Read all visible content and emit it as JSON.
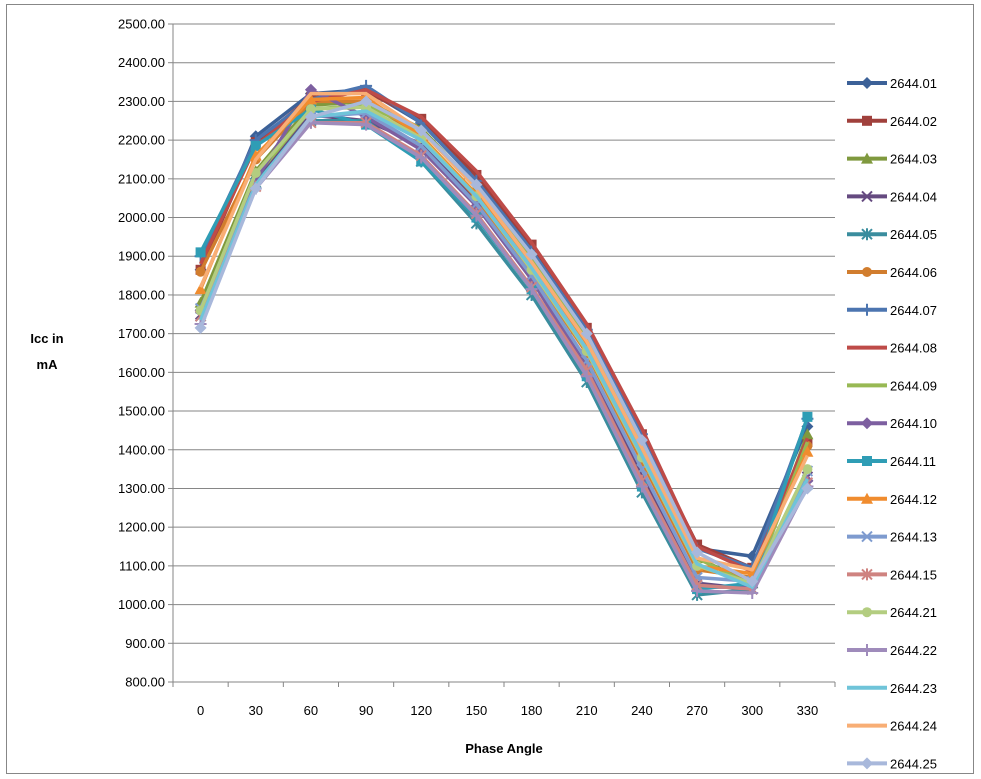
{
  "chart_data": {
    "type": "line",
    "title": "",
    "xlabel": "Phase Angle",
    "ylabel_lines": [
      "Icc in",
      "mA"
    ],
    "x": [
      "0",
      "30",
      "60",
      "90",
      "120",
      "150",
      "180",
      "210",
      "240",
      "270",
      "300",
      "330"
    ],
    "ylim": [
      800,
      2500
    ],
    "ytick_step": 100,
    "ytick_labels": [
      "800.00",
      "900.00",
      "1000.00",
      "1100.00",
      "1200.00",
      "1300.00",
      "1400.00",
      "1500.00",
      "1600.00",
      "1700.00",
      "1800.00",
      "1900.00",
      "2000.00",
      "2100.00",
      "2200.00",
      "2300.00",
      "2400.00",
      "2500.00"
    ],
    "grid": true,
    "legend_position": "right",
    "series": [
      {
        "name": "2644.01",
        "color": "#3C6198",
        "marker": "diamond",
        "values": [
          1865,
          2210,
          2320,
          2330,
          2245,
          2105,
          1915,
          1705,
          1425,
          1145,
          1125,
          1460
        ]
      },
      {
        "name": "2644.02",
        "color": "#A0403C",
        "marker": "square",
        "values": [
          1865,
          2195,
          2310,
          2325,
          2255,
          2110,
          1930,
          1715,
          1440,
          1155,
          1095,
          1420
        ]
      },
      {
        "name": "2644.03",
        "color": "#7F993E",
        "marker": "triangle",
        "values": [
          1780,
          2120,
          2290,
          2300,
          2230,
          2080,
          1895,
          1690,
          1420,
          1120,
          1055,
          1440
        ]
      },
      {
        "name": "2644.04",
        "color": "#654A80",
        "marker": "x",
        "values": [
          1750,
          2100,
          2265,
          2250,
          2190,
          2040,
          1850,
          1620,
          1330,
          1055,
          1040,
          1330
        ]
      },
      {
        "name": "2644.05",
        "color": "#3A8D9E",
        "marker": "star",
        "values": [
          1745,
          2090,
          2250,
          2250,
          2145,
          1985,
          1800,
          1575,
          1290,
          1025,
          1040,
          1310
        ]
      },
      {
        "name": "2644.06",
        "color": "#D17D2E",
        "marker": "circle",
        "values": [
          1860,
          2150,
          2300,
          2300,
          2210,
          2050,
          1860,
          1650,
          1370,
          1090,
          1070,
          1410
        ]
      },
      {
        "name": "2644.07",
        "color": "#4C75B0",
        "marker": "plus",
        "values": [
          1900,
          2200,
          2305,
          2340,
          2245,
          2095,
          1915,
          1710,
          1440,
          1145,
          1095,
          1480
        ]
      },
      {
        "name": "2644.08",
        "color": "#BE4B48",
        "marker": "none",
        "values": [
          1880,
          2185,
          2300,
          2330,
          2260,
          2120,
          1935,
          1725,
          1455,
          1150,
          1085,
          1430
        ]
      },
      {
        "name": "2644.09",
        "color": "#98B954",
        "marker": "none",
        "values": [
          1760,
          2105,
          2280,
          2290,
          2225,
          2075,
          1890,
          1690,
          1415,
          1120,
          1050,
          1420
        ]
      },
      {
        "name": "2644.10",
        "color": "#7D5FA0",
        "marker": "diamond",
        "values": [
          1760,
          2095,
          2330,
          2260,
          2175,
          2030,
          1840,
          1610,
          1320,
          1045,
          1045,
          1320
        ]
      },
      {
        "name": "2644.11",
        "color": "#2F9DB5",
        "marker": "square",
        "values": [
          1910,
          2185,
          2280,
          2240,
          2145,
          2000,
          1815,
          1590,
          1305,
          1040,
          1055,
          1485
        ]
      },
      {
        "name": "2644.12",
        "color": "#F08C2E",
        "marker": "triangle",
        "values": [
          1815,
          2160,
          2305,
          2310,
          2210,
          2060,
          1875,
          1670,
          1395,
          1100,
          1080,
          1395
        ]
      },
      {
        "name": "2644.13",
        "color": "#7E9BCF",
        "marker": "x",
        "values": [
          1765,
          2085,
          2260,
          2270,
          2185,
          2035,
          1850,
          1630,
          1350,
          1070,
          1060,
          1345
        ]
      },
      {
        "name": "2644.15",
        "color": "#CF8380",
        "marker": "star",
        "values": [
          1745,
          2080,
          2245,
          2245,
          2160,
          2010,
          1820,
          1605,
          1320,
          1050,
          1040,
          1315
        ]
      },
      {
        "name": "2644.21",
        "color": "#B3CD80",
        "marker": "circle",
        "values": [
          1760,
          2115,
          2280,
          2285,
          2205,
          2055,
          1865,
          1655,
          1380,
          1100,
          1055,
          1350
        ]
      },
      {
        "name": "2644.22",
        "color": "#9F8BBB",
        "marker": "plus",
        "values": [
          1725,
          2075,
          2245,
          2240,
          2155,
          2005,
          1815,
          1590,
          1305,
          1035,
          1030,
          1305
        ]
      },
      {
        "name": "2644.23",
        "color": "#6FC4D9",
        "marker": "none",
        "values": [
          1735,
          2085,
          2260,
          2275,
          2200,
          2055,
          1870,
          1660,
          1385,
          1105,
          1045,
          1325
        ]
      },
      {
        "name": "2644.24",
        "color": "#F8AE75",
        "marker": "none",
        "values": [
          1820,
          2150,
          2320,
          2320,
          2225,
          2075,
          1885,
          1680,
          1405,
          1120,
          1090,
          1385
        ]
      },
      {
        "name": "2644.25",
        "color": "#A8B8DB",
        "marker": "diamond",
        "values": [
          1715,
          2075,
          2260,
          2300,
          2225,
          2085,
          1905,
          1700,
          1425,
          1135,
          1060,
          1300
        ]
      }
    ]
  }
}
